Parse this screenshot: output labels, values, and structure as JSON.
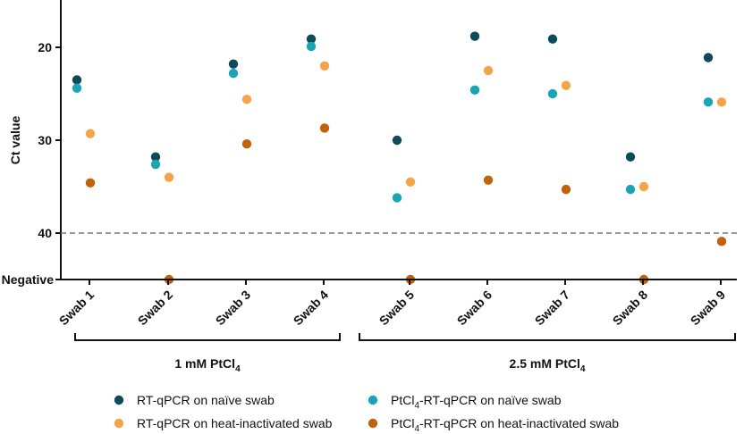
{
  "chart_data": {
    "type": "scatter",
    "ylabel": "Ct value",
    "y_reversed": true,
    "ylim": [
      15,
      40
    ],
    "y_ticks": [
      {
        "value": 20,
        "label": "20"
      },
      {
        "value": 30,
        "label": "30"
      },
      {
        "value": 40,
        "label": "40"
      }
    ],
    "negative_label": "Negative",
    "threshold": 40,
    "categories": [
      "Swab 1",
      "Swab 2",
      "Swab 3",
      "Swab 4",
      "Swab 5",
      "Swab 6",
      "Swab 7",
      "Swab 8",
      "Swab 9"
    ],
    "groups": [
      {
        "label_main": "1 mM PtCl",
        "label_sub": "4",
        "categories": [
          "Swab 1",
          "Swab 2",
          "Swab 3",
          "Swab 4"
        ]
      },
      {
        "label_main": "2.5 mM PtCl",
        "label_sub": "4",
        "categories": [
          "Swab 5",
          "Swab 6",
          "Swab 7",
          "Swab 8",
          "Swab 9"
        ]
      }
    ],
    "series": [
      {
        "name_main": "RT-qPCR on naïve swab",
        "name_sub": "",
        "name_tail": "",
        "color": "#0e4a5a",
        "values": [
          23.5,
          31.8,
          21.8,
          19.1,
          30.0,
          18.8,
          19.1,
          31.8,
          21.1
        ]
      },
      {
        "name_main": "RT-qPCR on heat-inactivated swab",
        "name_sub": "",
        "name_tail": "",
        "color": "#f4a54a",
        "values": [
          29.3,
          34.0,
          25.6,
          22.0,
          34.5,
          22.5,
          24.1,
          35.0,
          25.9
        ]
      },
      {
        "name_main": "PtCl",
        "name_sub": "4",
        "name_tail": "-RT-qPCR on naïve swab",
        "color": "#1aa5b5",
        "values": [
          24.4,
          32.6,
          22.8,
          19.9,
          36.2,
          24.6,
          25.0,
          35.3,
          25.9
        ]
      },
      {
        "name_main": "PtCl",
        "name_sub": "4",
        "name_tail": "-RT-qPCR on heat-inactivated swab",
        "color": "#c0640c",
        "values": [
          34.6,
          "Negative",
          30.4,
          28.7,
          "Negative",
          34.3,
          35.3,
          "Negative",
          40.9
        ]
      }
    ],
    "grid": false,
    "legend_position": "bottom"
  }
}
